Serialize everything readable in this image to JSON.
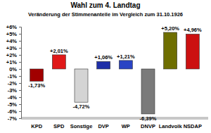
{
  "chart_data": {
    "type": "bar",
    "title": "Wahl zum 4. Landtag",
    "subtitle": "Veränderung der Stimmenanteile im Vergleich zum 31.10.1926",
    "categories": [
      "KPD",
      "SPD",
      "Sonstige",
      "DVP",
      "WP",
      "DNVP",
      "Landvolk",
      "NSDAP"
    ],
    "values": [
      -1.73,
      2.01,
      -4.72,
      1.06,
      1.21,
      -6.39,
      5.2,
      4.96
    ],
    "value_labels": [
      "-1,73%",
      "+2,01%",
      "-4,72%",
      "+1,06%",
      "+1,21%",
      "-6,39%",
      "+5,20%",
      "+4,96%"
    ],
    "colors": [
      "#a10000",
      "#e01818",
      "#d4d4d4",
      "#1f2fa8",
      "#2a44c4",
      "#7a7a7a",
      "#6e6e00",
      "#cc1010"
    ],
    "ylim": [
      -7,
      6
    ],
    "yticks": [
      {
        "value": -7,
        "label": "-7%"
      },
      {
        "value": -6,
        "label": "-6%"
      },
      {
        "value": -5,
        "label": "-5%"
      },
      {
        "value": -4,
        "label": "-4%"
      },
      {
        "value": -3,
        "label": "-3%"
      },
      {
        "value": -2,
        "label": "-2%"
      },
      {
        "value": -1,
        "label": "-1%"
      },
      {
        "value": 0,
        "label": "0%"
      },
      {
        "value": 1,
        "label": "+1%"
      },
      {
        "value": 2,
        "label": "+2%"
      },
      {
        "value": 3,
        "label": "+3%"
      },
      {
        "value": 4,
        "label": "+4%"
      },
      {
        "value": 5,
        "label": "+5%"
      },
      {
        "value": 6,
        "label": "+6%"
      }
    ],
    "grid": false,
    "data_labels": true
  }
}
